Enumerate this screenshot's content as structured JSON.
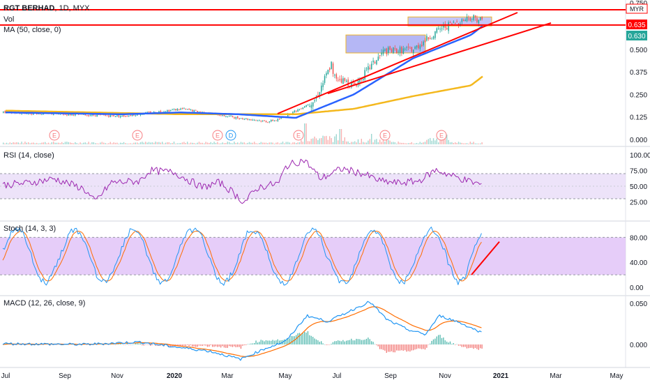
{
  "header": {
    "symbol": "RGT BERHAD",
    "interval": "1D",
    "exchange": "MYX",
    "currency": "MYR"
  },
  "panes": {
    "price": {
      "vol_label": "Vol",
      "ma_label": "MA (50, close, 0)",
      "price_tag": "0.635",
      "ma_tag": "0.630",
      "top_tick_partial": "0.750"
    },
    "rsi": {
      "label": "RSI (14, close)"
    },
    "stoch": {
      "label": "Stoch (14, 3, 3)"
    },
    "macd": {
      "label": "MACD (12, 26, close, 9)"
    }
  },
  "colors": {
    "candle_up": "#26a69a",
    "candle_down": "#ef5350",
    "ma50": "#2962ff",
    "ma_long": "#f4b81d",
    "trendline": "#ff0000",
    "range_box_fill": "#9598f1",
    "range_box_border": "#f0b429",
    "rsi_line": "#9c27b0",
    "rsi_band": "#e9dcf7",
    "stoch_k": "#2196f3",
    "stoch_d": "#ff6d00",
    "stoch_band": "#dcb8f7",
    "macd_line": "#2196f3",
    "signal_line": "#ff6d00",
    "hist_up": "#26a69a",
    "hist_down": "#ef5350",
    "axis_text": "#131722",
    "price_tag_bg": "#ff0000",
    "ma_tag_bg": "#26a69a"
  },
  "chart_data": {
    "type": "candlestick",
    "time_axis": [
      "Jul",
      "Sep",
      "Nov",
      "2020",
      "Mar",
      "May",
      "Jul",
      "Sep",
      "Nov",
      "2021",
      "Mar",
      "May"
    ],
    "price_axis": {
      "ticks": [
        "0.000",
        "0.125",
        "0.250",
        "0.375",
        "0.500"
      ],
      "range": [
        0,
        0.75
      ],
      "unit": "MYR"
    },
    "rsi_axis": {
      "ticks": [
        "100.00",
        "75.00",
        "50.00",
        "25.00"
      ],
      "band": [
        30,
        70
      ]
    },
    "stoch_axis": {
      "ticks": [
        "80.00",
        "40.00",
        "0.00"
      ],
      "band": [
        20,
        80
      ]
    },
    "macd_axis": {
      "ticks": [
        "0.050",
        "0.000"
      ]
    },
    "earnings_markers": [
      "E",
      "E",
      "E",
      "D",
      "E",
      "E",
      "E"
    ],
    "price_series": [
      {
        "date": "Jul 2019",
        "close": 0.15
      },
      {
        "date": "Sep 2019",
        "close": 0.14
      },
      {
        "date": "Nov 2019",
        "close": 0.13
      },
      {
        "date": "Jan 2020",
        "close": 0.17
      },
      {
        "date": "Mar 2020",
        "close": 0.12
      },
      {
        "date": "Apr 2020",
        "close": 0.1
      },
      {
        "date": "May 2020",
        "close": 0.16
      },
      {
        "date": "Jun 2020",
        "close": 0.37
      },
      {
        "date": "Jul 2020",
        "close": 0.3
      },
      {
        "date": "Aug 2020",
        "close": 0.49
      },
      {
        "date": "Sep 2020",
        "close": 0.5
      },
      {
        "date": "Oct 2020",
        "close": 0.62
      },
      {
        "date": "Nov 2020",
        "close": 0.68
      },
      {
        "date": "Dec 2020",
        "close": 0.635
      }
    ],
    "ma50_series": [
      {
        "date": "Jul 2019",
        "value": 0.15
      },
      {
        "date": "Nov 2019",
        "value": 0.14
      },
      {
        "date": "Jan 2020",
        "value": 0.15
      },
      {
        "date": "Mar 2020",
        "value": 0.14
      },
      {
        "date": "May 2020",
        "value": 0.12
      },
      {
        "date": "Jul 2020",
        "value": 0.25
      },
      {
        "date": "Sep 2020",
        "value": 0.45
      },
      {
        "date": "Nov 2020",
        "value": 0.58
      },
      {
        "date": "Dec 2020",
        "value": 0.63
      }
    ],
    "long_ma_series": [
      {
        "date": "Jul 2019",
        "value": 0.16
      },
      {
        "date": "Jan 2020",
        "value": 0.14
      },
      {
        "date": "May 2020",
        "value": 0.14
      },
      {
        "date": "Jul 2020",
        "value": 0.17
      },
      {
        "date": "Sep 2020",
        "value": 0.24
      },
      {
        "date": "Nov 2020",
        "value": 0.3
      },
      {
        "date": "Dec 2020",
        "value": 0.35
      }
    ],
    "horizontal_levels": [
      0.72,
      0.635
    ],
    "range_boxes": [
      {
        "from": "Jul 2020",
        "to": "Sep 2020",
        "low": 0.48,
        "high": 0.58
      },
      {
        "from": "Sep 2020",
        "to": "Dec 2020",
        "low": 0.63,
        "high": 0.68
      }
    ]
  }
}
